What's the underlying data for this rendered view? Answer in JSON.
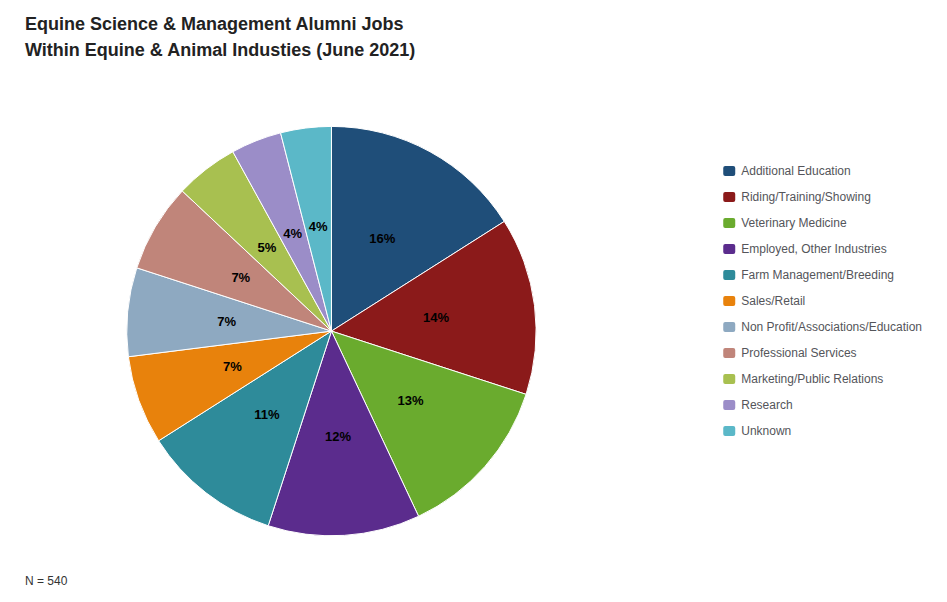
{
  "chart_data": {
    "type": "pie",
    "title": "Equine Science & Management Alumni Jobs",
    "subtitle": "Within Equine & Animal Industies (June 2021)",
    "annotations": [
      "N = 540"
    ],
    "categories": [
      "Additional Education",
      "Riding/Training/Showing",
      "Veterinary Medicine",
      "Employed, Other Industries",
      "Farm Management/Breeding",
      "Sales/Retail",
      "Non Profit/Associations/Education",
      "Professional Services",
      "Marketing/Public Relations",
      "Research",
      "Unknown"
    ],
    "values": [
      16,
      14,
      13,
      12,
      11,
      7,
      7,
      7,
      5,
      4,
      4
    ],
    "value_labels": [
      "16%",
      "14%",
      "13%",
      "12%",
      "11%",
      "7%",
      "7%",
      "7%",
      "5%",
      "4%",
      "4%"
    ],
    "colors": [
      "#1F4E79",
      "#8B1A1A",
      "#6AAB2E",
      "#5B2C8D",
      "#2E8B9A",
      "#E8820C",
      "#8EA9C1",
      "#C0857A",
      "#A8C050",
      "#9B8DC8",
      "#5BB8C8"
    ],
    "data_labels": true,
    "legend": "right"
  }
}
